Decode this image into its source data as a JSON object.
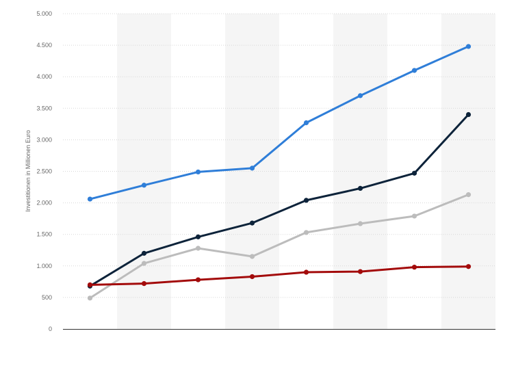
{
  "chart_data": {
    "type": "line",
    "title": "",
    "xlabel": "",
    "ylabel": "Investitionen in Millionen Euro",
    "ylim": [
      0,
      5000
    ],
    "yticks": [
      0,
      500,
      1000,
      1500,
      2000,
      2500,
      3000,
      3500,
      4000,
      4500,
      5000
    ],
    "ytick_labels": [
      "0",
      "500",
      "1.000",
      "1.500",
      "2.000",
      "2.500",
      "3.000",
      "3.500",
      "4.000",
      "4.500",
      "5.000"
    ],
    "categories": [
      "",
      "",
      "",
      "",
      "",
      "",
      "",
      ""
    ],
    "grid": true,
    "legend": "none",
    "series": [
      {
        "color": "#2f7ed8",
        "values": [
          2060,
          2280,
          2490,
          2550,
          3270,
          3700,
          4100,
          4480
        ]
      },
      {
        "color": "#0d233a",
        "values": [
          680,
          1200,
          1460,
          1680,
          2040,
          2230,
          2470,
          3400
        ]
      },
      {
        "color": "#bcbcbc",
        "values": [
          490,
          1040,
          1280,
          1150,
          1530,
          1670,
          1790,
          2130
        ]
      },
      {
        "color": "#a30b0b",
        "values": [
          700,
          720,
          780,
          830,
          900,
          910,
          980,
          990
        ]
      }
    ]
  },
  "colors": {
    "band": "#f5f5f5",
    "grid": "#d8d8d8",
    "axis": "#333333"
  }
}
